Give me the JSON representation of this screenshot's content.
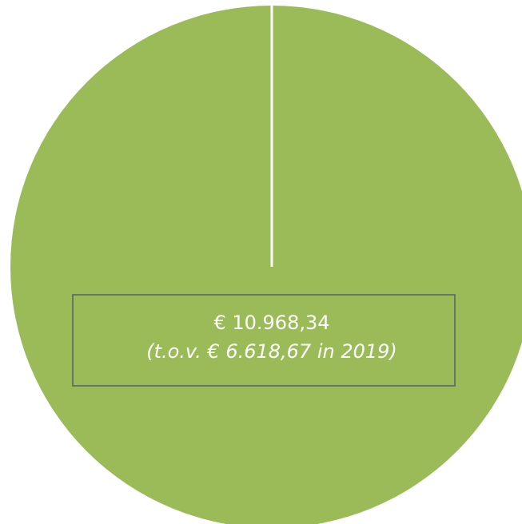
{
  "chart_data": {
    "type": "pie",
    "values": [
      10968.34
    ],
    "value_labels": [
      "€ 10.968,34"
    ],
    "colors": [
      "#9bbb59"
    ],
    "annotation": "(t.o.v. € 6.618,67 in 2019)"
  }
}
